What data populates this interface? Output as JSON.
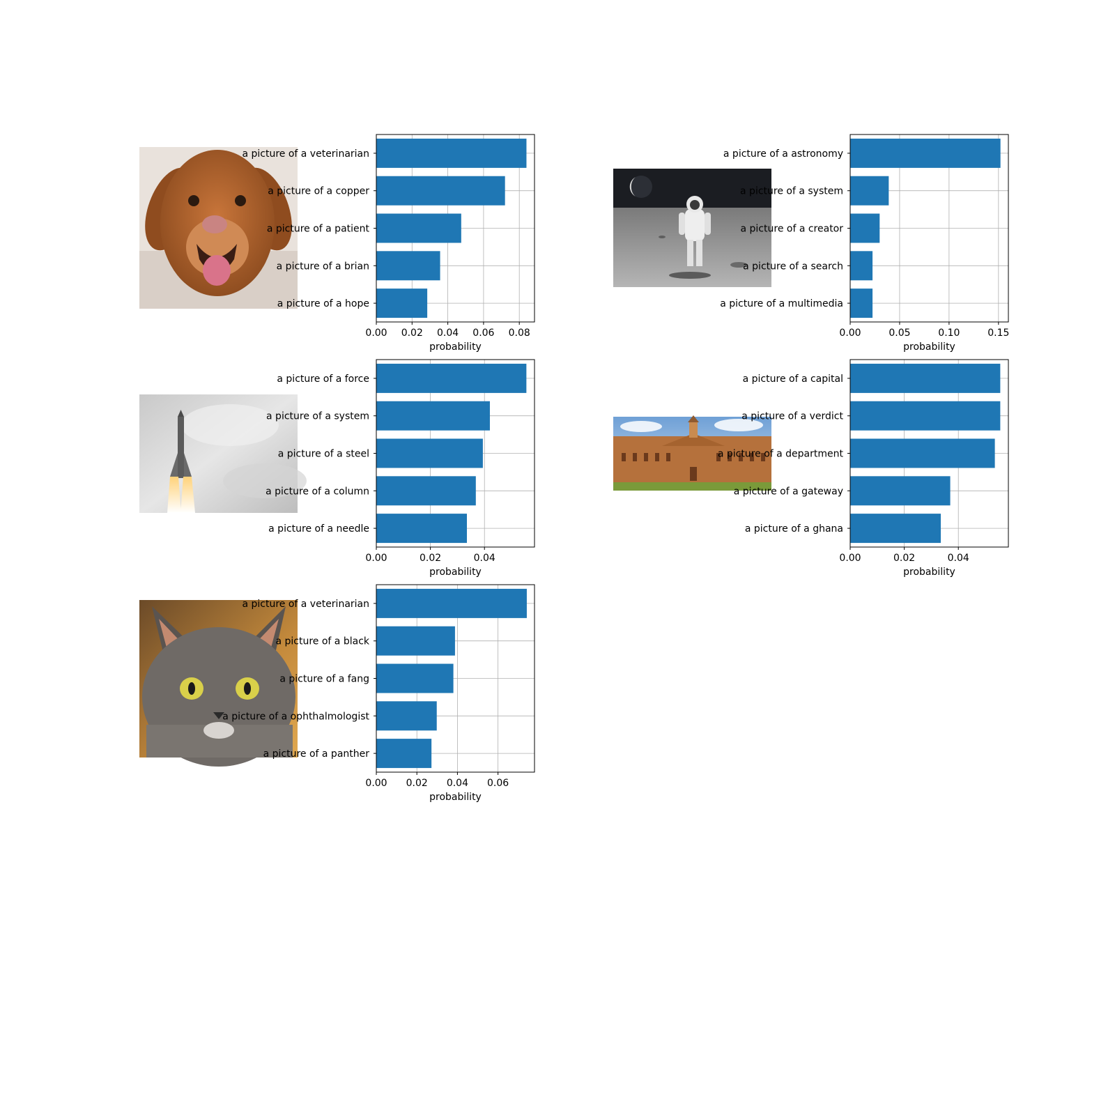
{
  "chart_data": [
    {
      "type": "bar",
      "orientation": "horizontal",
      "image": "dog",
      "categories": [
        "a picture of a veterinarian",
        "a picture of a copper",
        "a picture of a patient",
        "a picture of a brian",
        "a picture of a hope"
      ],
      "values": [
        0.084,
        0.072,
        0.0475,
        0.0357,
        0.0285
      ],
      "xlim": [
        0,
        0.0885
      ],
      "xticks": [
        0.0,
        0.02,
        0.04,
        0.06,
        0.08
      ],
      "xtick_labels": [
        "0.00",
        "0.02",
        "0.04",
        "0.06",
        "0.08"
      ],
      "xlabel": "probability",
      "grid": true,
      "bar_color": "#1f77b4"
    },
    {
      "type": "bar",
      "orientation": "horizontal",
      "image": "astronaut",
      "categories": [
        "a picture of a astronomy",
        "a picture of a system",
        "a picture of a creator",
        "a picture of a search",
        "a picture of a multimedia"
      ],
      "values": [
        0.152,
        0.039,
        0.0298,
        0.0226,
        0.0226
      ],
      "xlim": [
        0,
        0.16
      ],
      "xticks": [
        0.0,
        0.05,
        0.1,
        0.15
      ],
      "xtick_labels": [
        "0.00",
        "0.05",
        "0.10",
        "0.15"
      ],
      "xlabel": "probability",
      "grid": true,
      "bar_color": "#1f77b4"
    },
    {
      "type": "bar",
      "orientation": "horizontal",
      "image": "rocket",
      "categories": [
        "a picture of a force",
        "a picture of a system",
        "a picture of a steel",
        "a picture of a column",
        "a picture of a needle"
      ],
      "values": [
        0.0555,
        0.042,
        0.0394,
        0.0368,
        0.0335
      ],
      "xlim": [
        0,
        0.0585
      ],
      "xticks": [
        0.0,
        0.02,
        0.04
      ],
      "xtick_labels": [
        "0.00",
        "0.02",
        "0.04"
      ],
      "xlabel": "probability",
      "grid": true,
      "bar_color": "#1f77b4"
    },
    {
      "type": "bar",
      "orientation": "horizontal",
      "image": "building",
      "categories": [
        "a picture of a capital",
        "a picture of a verdict",
        "a picture of a department",
        "a picture of a gateway",
        "a picture of a ghana"
      ],
      "values": [
        0.0555,
        0.0555,
        0.0535,
        0.037,
        0.0335
      ],
      "xlim": [
        0,
        0.0585
      ],
      "xticks": [
        0.0,
        0.02,
        0.04
      ],
      "xtick_labels": [
        "0.00",
        "0.02",
        "0.04"
      ],
      "xlabel": "probability",
      "grid": true,
      "bar_color": "#1f77b4"
    },
    {
      "type": "bar",
      "orientation": "horizontal",
      "image": "cat",
      "categories": [
        "a picture of a veterinarian",
        "a picture of a black",
        "a picture of a fang",
        "a picture of a ophthalmologist",
        "a picture of a panther"
      ],
      "values": [
        0.0742,
        0.0388,
        0.038,
        0.0298,
        0.0272
      ],
      "xlim": [
        0,
        0.078
      ],
      "xticks": [
        0.0,
        0.02,
        0.04,
        0.06
      ],
      "xtick_labels": [
        "0.00",
        "0.02",
        "0.04",
        "0.06"
      ],
      "xlabel": "probability",
      "grid": true,
      "bar_color": "#1f77b4"
    }
  ]
}
